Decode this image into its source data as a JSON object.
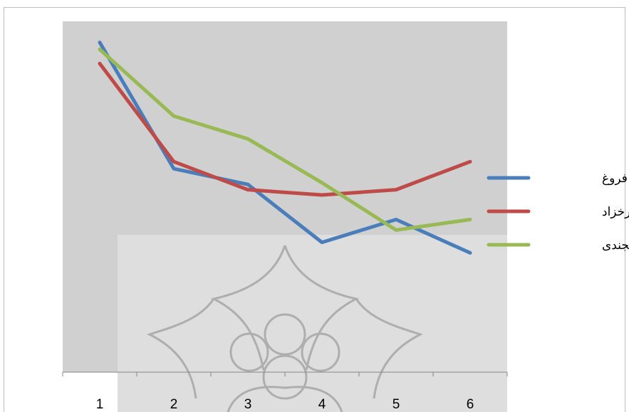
{
  "chart_data": {
    "type": "line",
    "categories": [
      "1",
      "2",
      "3",
      "4",
      "5",
      "6"
    ],
    "ylim": [
      0,
      10
    ],
    "grid": false,
    "legend_position": "right",
    "plot_background": "#d0d0d0",
    "watermark_color": "#a6a6a6",
    "series": [
      {
        "name": "خالده فروغ",
        "color": "#4a7ebb",
        "values": [
          9.4,
          5.8,
          5.35,
          3.7,
          4.35,
          3.4
        ]
      },
      {
        "name": "فروغ فرخزاد",
        "color": "#be4b48",
        "values": [
          8.8,
          6.0,
          5.2,
          5.05,
          5.2,
          6.0
        ]
      },
      {
        "name": "فرزانه خجندی",
        "color": "#98b954",
        "values": [
          9.2,
          7.3,
          6.65,
          5.4,
          4.05,
          4.35
        ]
      }
    ]
  }
}
